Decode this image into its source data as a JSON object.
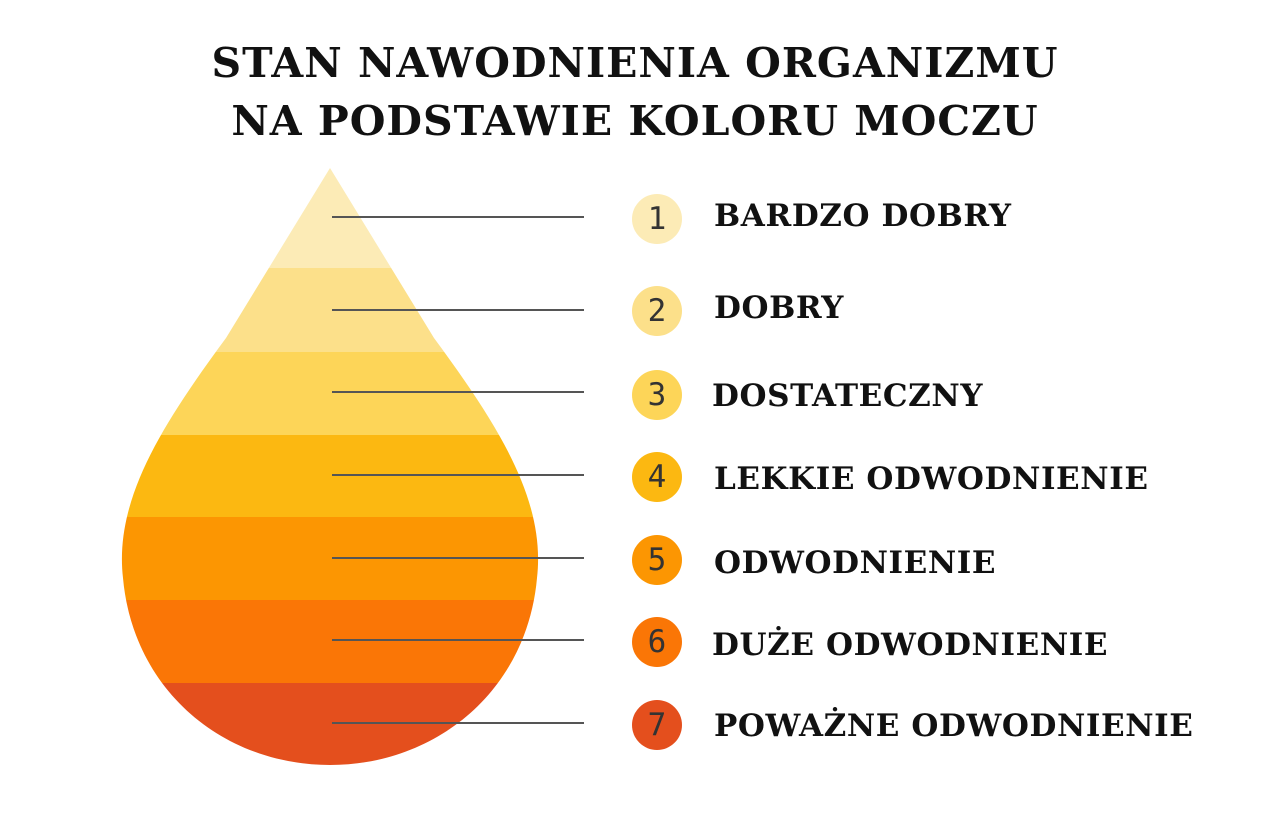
{
  "title": {
    "line1": "STAN NAWODNIENIA ORGANIZMU",
    "line2": "NA PODSTAWIE KOLORU MOCZU"
  },
  "levels": [
    {
      "number": "1",
      "label": "BARDZO DOBRY",
      "color": "#FCEBB6"
    },
    {
      "number": "2",
      "label": "DOBRY",
      "color": "#FCE08A"
    },
    {
      "number": "3",
      "label": "DOSTATECZNY",
      "color": "#FDD558"
    },
    {
      "number": "4",
      "label": "LEKKIE ODWODNIENIE",
      "color": "#FCB811"
    },
    {
      "number": "5",
      "label": "ODWODNIENIE",
      "color": "#FC9602"
    },
    {
      "number": "6",
      "label": "DUŻE ODWODNIENIE",
      "color": "#FA7606"
    },
    {
      "number": "7",
      "label": "POWAŻNE ODWODNIENIE",
      "color": "#E44F1D"
    }
  ],
  "connector_color": "#555555"
}
